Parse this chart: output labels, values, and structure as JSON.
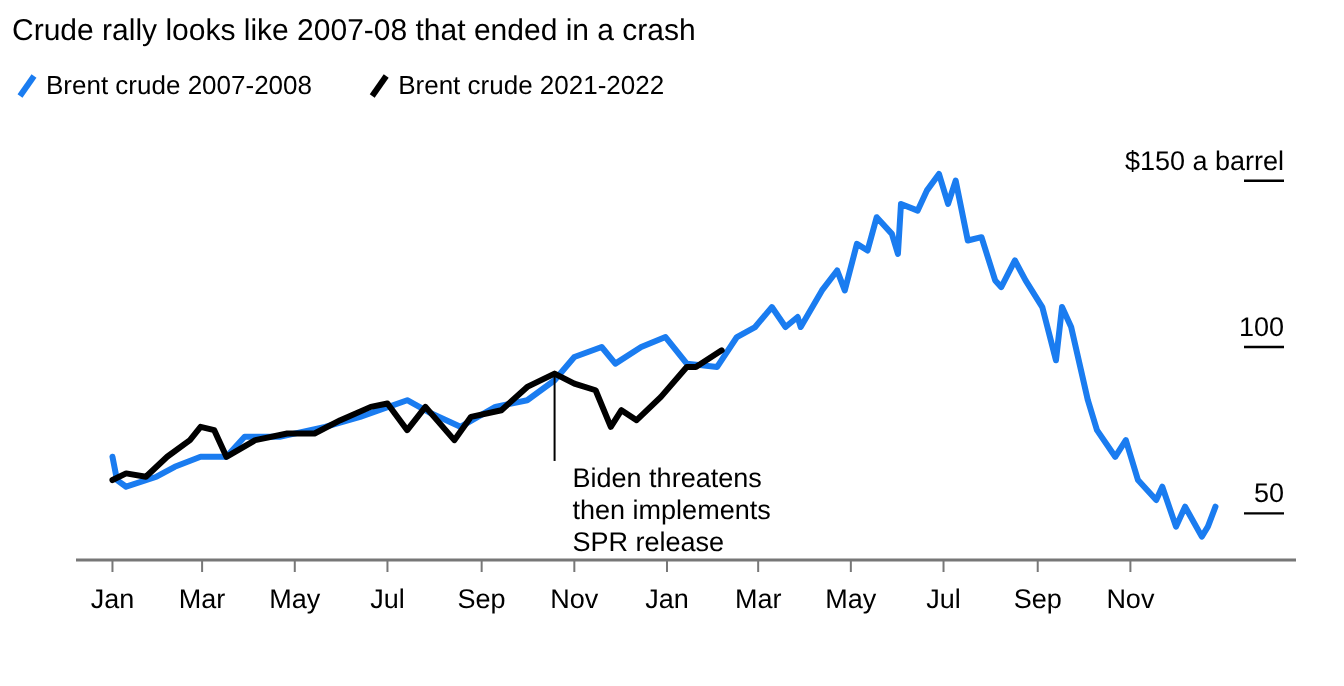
{
  "chart_data": {
    "type": "line",
    "title": "Crude rally looks like 2007-08 that ended in a crash",
    "legend": "top left",
    "line_style": "solid",
    "marker": "none",
    "xlim": [
      "2006-12-08",
      "2009-02-18"
    ],
    "xticks": [
      {
        "value": "2007-01-01",
        "label": "Jan"
      },
      {
        "value": "2007-03-01",
        "label": "Mar"
      },
      {
        "value": "2007-05-01",
        "label": "May"
      },
      {
        "value": "2007-07-01",
        "label": "Jul"
      },
      {
        "value": "2007-09-01",
        "label": "Sep"
      },
      {
        "value": "2007-11-01",
        "label": "Nov"
      },
      {
        "value": "2008-01-01",
        "label": "Jan"
      },
      {
        "value": "2008-03-01",
        "label": "Mar"
      },
      {
        "value": "2008-05-01",
        "label": "May"
      },
      {
        "value": "2008-07-01",
        "label": "Jul"
      },
      {
        "value": "2008-09-01",
        "label": "Sep"
      },
      {
        "value": "2008-11-01",
        "label": "Nov"
      }
    ],
    "ylim": [
      -7.9,
      198.3
    ],
    "yticks": [
      50,
      100,
      {
        "value": 150,
        "label": "$150 a barrel"
      }
    ],
    "annotations": [
      {
        "text": "Biden threatens\nthen implements\nSPR release",
        "x": "2007-10-19",
        "y": 85
      }
    ],
    "series": [
      {
        "name": "Brent crude 2007-2008",
        "color": "#1a7cf0",
        "x": [
          "2007-01-01",
          "2007-01-04",
          "2007-01-10",
          "2007-01-30",
          "2007-02-11",
          "2007-02-28",
          "2007-03-17",
          "2007-03-29",
          "2007-04-21",
          "2007-05-21",
          "2007-06-13",
          "2007-07-14",
          "2007-07-30",
          "2007-08-18",
          "2007-09-10",
          "2007-10-01",
          "2007-10-19",
          "2007-11-01",
          "2007-11-19",
          "2007-11-28",
          "2007-12-15",
          "2007-12-31",
          "2008-01-14",
          "2008-02-03",
          "2008-02-16",
          "2008-02-28",
          "2008-03-10",
          "2008-03-19",
          "2008-03-27",
          "2008-03-29",
          "2008-04-12",
          "2008-04-22",
          "2008-04-27",
          "2008-05-05",
          "2008-05-12",
          "2008-05-18",
          "2008-05-28",
          "2008-06-01",
          "2008-06-03",
          "2008-06-14",
          "2008-06-20",
          "2008-06-28",
          "2008-07-04",
          "2008-07-09",
          "2008-07-17",
          "2008-07-26",
          "2008-08-04",
          "2008-08-08",
          "2008-08-17",
          "2008-08-24",
          "2008-09-04",
          "2008-09-13",
          "2008-09-17",
          "2008-09-23",
          "2008-10-04",
          "2008-10-10",
          "2008-10-22",
          "2008-10-29",
          "2008-11-06",
          "2008-11-18",
          "2008-11-22",
          "2008-12-01",
          "2008-12-07",
          "2008-12-18",
          "2008-12-22",
          "2008-12-27"
        ],
        "values": [
          61,
          54,
          52,
          55,
          58,
          61,
          61,
          67,
          67,
          70,
          73,
          78,
          74,
          70,
          76,
          78,
          84,
          91,
          94,
          89,
          94,
          97,
          89,
          88,
          97,
          100,
          106,
          100,
          103,
          100,
          111,
          117,
          111,
          125,
          123,
          133,
          128,
          122,
          137,
          135,
          141,
          146,
          137,
          144,
          126,
          127,
          114,
          112,
          120,
          114,
          106,
          90,
          106,
          100,
          78,
          69,
          61,
          66,
          54,
          48,
          52,
          40,
          46,
          37,
          40,
          46
        ]
      },
      {
        "name": "Brent crude 2021-2022",
        "color": "#000000",
        "x": [
          "2007-01-01",
          "2007-01-10",
          "2007-01-23",
          "2007-02-06",
          "2007-02-21",
          "2007-02-28",
          "2007-03-09",
          "2007-03-17",
          "2007-04-05",
          "2007-04-26",
          "2007-05-14",
          "2007-05-31",
          "2007-06-20",
          "2007-07-01",
          "2007-07-14",
          "2007-07-26",
          "2007-08-14",
          "2007-08-25",
          "2007-09-14",
          "2007-10-01",
          "2007-10-19",
          "2007-11-01",
          "2007-11-15",
          "2007-11-25",
          "2007-12-02",
          "2007-12-12",
          "2007-12-28",
          "2008-01-14",
          "2008-01-20",
          "2008-02-06"
        ],
        "values": [
          54,
          56,
          55,
          61,
          66,
          70,
          69,
          61,
          66,
          68,
          68,
          72,
          76,
          77,
          69,
          76,
          66,
          73,
          75,
          82,
          86,
          83,
          81,
          70,
          75,
          72,
          79,
          88,
          88,
          93
        ]
      }
    ]
  }
}
